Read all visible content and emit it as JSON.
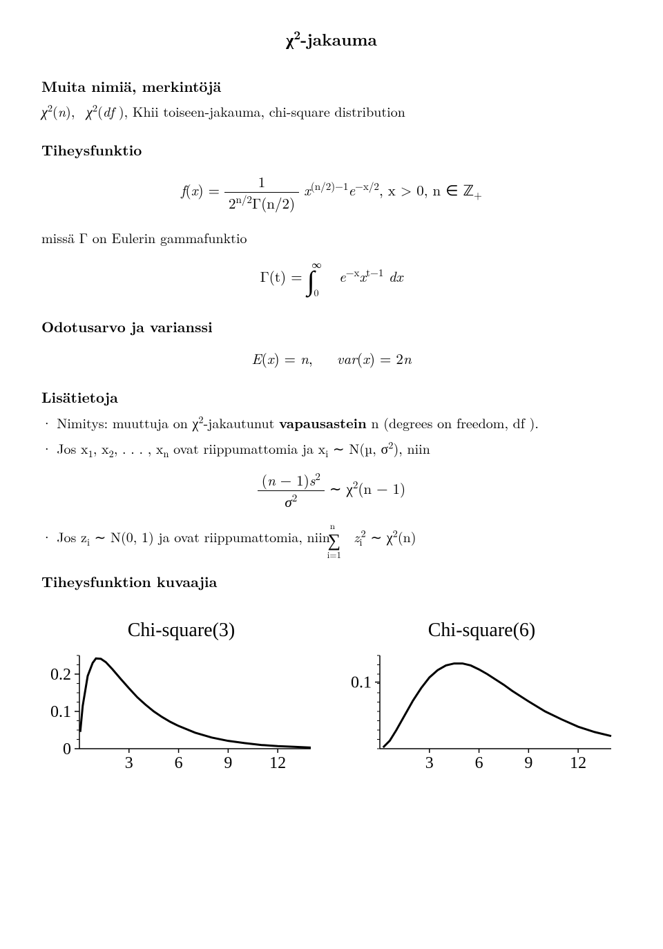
{
  "title_prefix": "χ",
  "title_sup": "2",
  "title_suffix": "-jakauma",
  "sections": {
    "names_heading": "Muita nimiä, merkintöjä",
    "names_line": "χ²(n),  χ²(df ), Khii toiseen-jakauma, chi-square distribution",
    "density_heading": "Tiheysfunktio",
    "density_formula_lhs": "f(x) = ",
    "density_formula_num": "1",
    "density_formula_den": "2",
    "density_formula_den_sup": "n/2",
    "density_formula_den_gamma": "Γ(n/2)",
    "density_formula_rest": "x",
    "density_formula_rest_sup": "(n/2)−1",
    "density_formula_exp": "e",
    "density_formula_exp_sup": "−x/2",
    "density_formula_cond": ",  x > 0,  n ∈ ℤ",
    "density_formula_cond_sub": "+",
    "gamma_line": "missä Γ on Eulerin gammafunktio",
    "gamma_formula_lhs": "Γ(t) = ",
    "gamma_formula_int_upper": "∞",
    "gamma_formula_int_lower": "0",
    "gamma_formula_body": " e",
    "gamma_formula_body_sup": "−x",
    "gamma_formula_body2": "x",
    "gamma_formula_body2_sup": "t−1",
    "gamma_formula_dx": " dx",
    "ev_heading": "Odotusarvo ja varianssi",
    "ev_formula": "E(x) = n,   var(x) = 2n",
    "info_heading": "Lisätietoja",
    "info_b1_a": "Nimitys: muuttuja on χ",
    "info_b1_sup": "2",
    "info_b1_b": "-jakautunut ",
    "info_b1_bold": "vapausastein",
    "info_b1_c": " n (degrees on freedom, df ).",
    "info_b2_a": "Jos x",
    "info_b2_s1": "1",
    "info_b2_b": ", x",
    "info_b2_s2": "2",
    "info_b2_c": ", . . . , x",
    "info_b2_sn": "n",
    "info_b2_d": " ovat riippumattomia ja x",
    "info_b2_si": "i",
    "info_b2_e": " ∼ N(µ, σ",
    "info_b2_esup": "2",
    "info_b2_f": "), niin",
    "info_b2_formula_num": "(n − 1)s",
    "info_b2_formula_num_sup": "2",
    "info_b2_formula_den": "σ",
    "info_b2_formula_den_sup": "2",
    "info_b2_formula_rhs": " ∼ χ",
    "info_b2_formula_rhs_sup": "2",
    "info_b2_formula_rhs2": "(n − 1)",
    "info_b3_a": "Jos z",
    "info_b3_si": "i",
    "info_b3_b": " ∼ N(0, 1) ja ovat riippumattomia, niin ",
    "info_b3_sum_upper": "n",
    "info_b3_sum_lower": "i=1",
    "info_b3_c": " z",
    "info_b3_csub": "i",
    "info_b3_csup": "2",
    "info_b3_d": " ∼ χ",
    "info_b3_dsup": "2",
    "info_b3_e": "(n)",
    "graphs_heading": "Tiheysfunktion kuvaajia"
  },
  "chart1": {
    "type": "line",
    "title": "Chi-square(3)",
    "xlim": [
      0,
      14
    ],
    "ylim": [
      0,
      0.25
    ],
    "xticks": [
      3,
      6,
      9,
      12
    ],
    "yticks": [
      0,
      0.1,
      0.2
    ],
    "line_color": "#000000",
    "line_width": 3,
    "axis_color": "#000000",
    "background_color": "#ffffff",
    "tick_fontsize": 24,
    "title_fontsize": 28,
    "points": [
      [
        0.05,
        0.045
      ],
      [
        0.2,
        0.115
      ],
      [
        0.5,
        0.195
      ],
      [
        0.8,
        0.23
      ],
      [
        1.0,
        0.242
      ],
      [
        1.3,
        0.241
      ],
      [
        1.6,
        0.232
      ],
      [
        2.0,
        0.213
      ],
      [
        2.5,
        0.187
      ],
      [
        3.0,
        0.162
      ],
      [
        3.5,
        0.138
      ],
      [
        4.0,
        0.118
      ],
      [
        4.5,
        0.1
      ],
      [
        5.0,
        0.085
      ],
      [
        5.5,
        0.072
      ],
      [
        6.0,
        0.061
      ],
      [
        7.0,
        0.043
      ],
      [
        8.0,
        0.03
      ],
      [
        9.0,
        0.021
      ],
      [
        10.0,
        0.015
      ],
      [
        11.0,
        0.01
      ],
      [
        12.0,
        0.007
      ],
      [
        13.0,
        0.005
      ],
      [
        14.0,
        0.003
      ]
    ]
  },
  "chart2": {
    "type": "line",
    "title": "Chi-square(6)",
    "xlim": [
      0,
      14
    ],
    "ylim": [
      0,
      0.14
    ],
    "xticks": [
      3,
      6,
      9,
      12
    ],
    "yticks": [
      0.1
    ],
    "line_color": "#000000",
    "line_width": 3,
    "axis_color": "#000000",
    "background_color": "#ffffff",
    "tick_fontsize": 24,
    "title_fontsize": 28,
    "points": [
      [
        0.2,
        0.002
      ],
      [
        0.6,
        0.012
      ],
      [
        1.0,
        0.028
      ],
      [
        1.5,
        0.05
      ],
      [
        2.0,
        0.072
      ],
      [
        2.5,
        0.091
      ],
      [
        3.0,
        0.107
      ],
      [
        3.5,
        0.118
      ],
      [
        4.0,
        0.125
      ],
      [
        4.5,
        0.128
      ],
      [
        5.0,
        0.128
      ],
      [
        5.5,
        0.125
      ],
      [
        6.0,
        0.119
      ],
      [
        6.5,
        0.112
      ],
      [
        7.0,
        0.104
      ],
      [
        7.5,
        0.096
      ],
      [
        8.0,
        0.087
      ],
      [
        9.0,
        0.071
      ],
      [
        10.0,
        0.056
      ],
      [
        11.0,
        0.044
      ],
      [
        12.0,
        0.033
      ],
      [
        13.0,
        0.025
      ],
      [
        14.0,
        0.019
      ]
    ]
  }
}
